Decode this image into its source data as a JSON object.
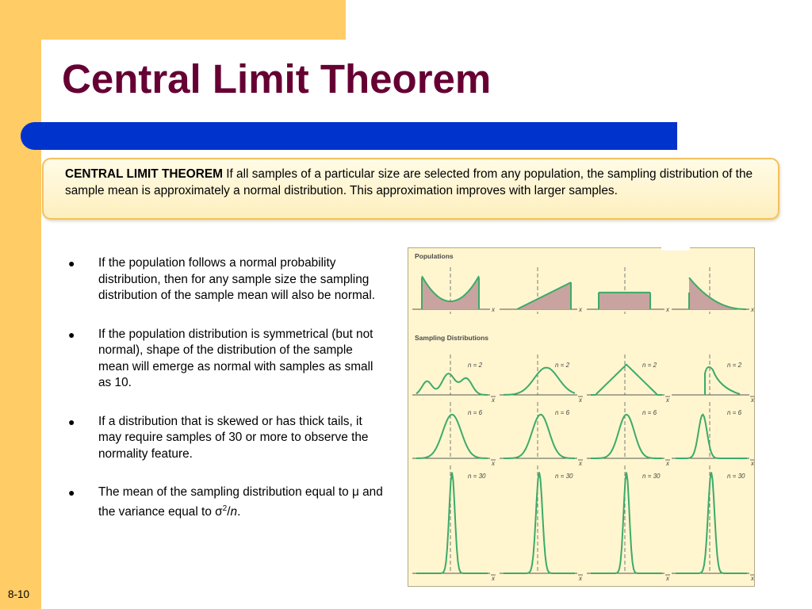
{
  "title": "Central Limit Theorem",
  "definition": {
    "term": "CENTRAL LIMIT THEOREM",
    "text": " If all samples of a particular size are selected from any population, the sampling distribution of the sample mean is approximately a normal distribution. This approximation improves with larger samples."
  },
  "bullets": [
    "If the population follows a normal probability distribution, then for any sample size the sampling distribution of the sample mean will also be normal.",
    "If the population distribution is symmetrical (but not normal), shape of the distribution of the sample mean will emerge as normal with samples as small as 10.",
    "If a distribution that is skewed or has thick tails, it may require samples of 30 or more to observe the normality feature."
  ],
  "bullet4": {
    "prefix": "The mean of the sampling distribution equal to μ and the variance equal to σ",
    "sup": "2",
    "slash": "/",
    "n": "n",
    "end": "."
  },
  "figure": {
    "populations_label": "Populations",
    "sampling_label": "Sampling Distributions",
    "x_label": "x",
    "xbar_label": "x",
    "n_labels": [
      "n = 2",
      "n = 6",
      "n = 30"
    ],
    "colors": {
      "curve": "#3DAA6A",
      "fill": "#C9A3A0",
      "dash": "#7a7a7a"
    }
  },
  "slide_number": "8-10",
  "colors": {
    "title": "#660033",
    "accent_bar": "#0033CC",
    "frame": "#FFCC66"
  }
}
